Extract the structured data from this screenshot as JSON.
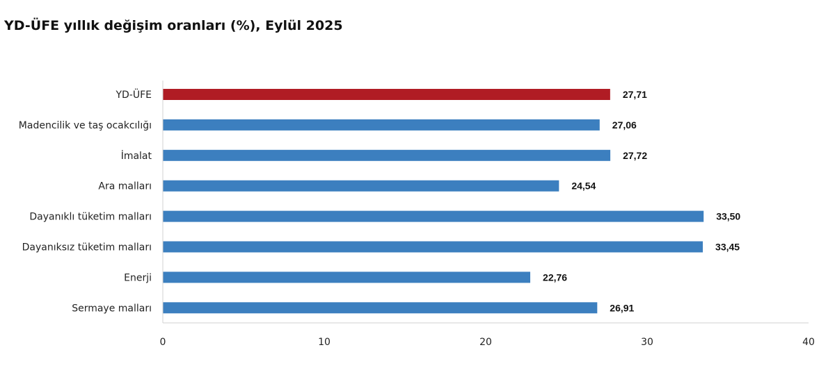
{
  "title": "YD-ÜFE yıllık değişim oranları (%), Eylül 2025",
  "chart_data": {
    "type": "bar",
    "orientation": "horizontal",
    "title": "YD-ÜFE yıllık değişim oranları (%), Eylül 2025",
    "categories": [
      "YD-ÜFE",
      "Madencilik ve taş ocakcılığı",
      "İmalat",
      "Ara malları",
      "Dayanıklı tüketim malları",
      "Dayanıksız tüketim malları",
      "Enerji",
      "Sermaye malları"
    ],
    "values": [
      27.71,
      27.06,
      27.72,
      24.54,
      33.5,
      33.45,
      22.76,
      26.91
    ],
    "value_labels": [
      "27,71",
      "27,06",
      "27,72",
      "24,54",
      "33,50",
      "33,45",
      "22,76",
      "26,91"
    ],
    "xlim": [
      0,
      40
    ],
    "xticks": [
      0,
      10,
      20,
      30,
      40
    ],
    "xtick_labels": [
      "0",
      "10",
      "20",
      "30",
      "40"
    ],
    "grid": false,
    "legend": "none",
    "colors": {
      "highlight": "#B01C24",
      "bar": "#3C7FBF"
    },
    "highlight_index": 0
  }
}
